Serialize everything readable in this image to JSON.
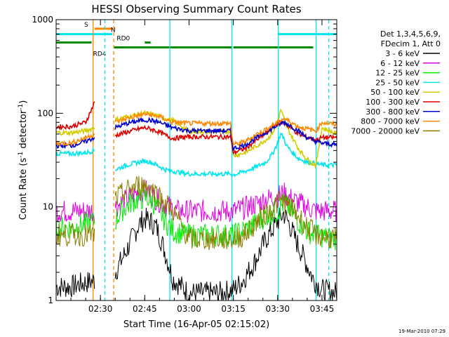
{
  "chart_data": {
    "type": "line",
    "title": "HESSI Observing Summary Count Rates",
    "xlabel": "Start Time (16-Apr-05 02:15:02)",
    "ylabel_main": "Count Rate (s",
    "ylabel_sup1": "-1",
    "ylabel_mid": " detector",
    "ylabel_sup2": "-1",
    "ylabel_end": ")",
    "y_scale": "log",
    "ylim": [
      1,
      1000
    ],
    "xlim_minutes": [
      0,
      95
    ],
    "y_ticks": [
      {
        "value": 1,
        "label": "1"
      },
      {
        "value": 10,
        "label": "10"
      },
      {
        "value": 100,
        "label": "100"
      },
      {
        "value": 1000,
        "label": "1000"
      }
    ],
    "x_ticks": [
      {
        "minute": 15,
        "label": "02:30"
      },
      {
        "minute": 30,
        "label": "02:45"
      },
      {
        "minute": 45,
        "label": "03:00"
      },
      {
        "minute": 60,
        "label": "03:15"
      },
      {
        "minute": 75,
        "label": "03:30"
      },
      {
        "minute": 90,
        "label": "03:45"
      }
    ],
    "legend_header": [
      "Det 1,3,4,5,6,9,",
      "FDecim 1, Att 0"
    ],
    "footer_date": "19-Mar-2010 07:29",
    "gap": [
      13,
      20
    ],
    "series": [
      {
        "name": "3 - 6 keV",
        "color": "#000000",
        "points": [
          [
            0,
            1.4
          ],
          [
            5,
            1.4
          ],
          [
            8,
            1.5
          ],
          [
            12,
            1.6
          ],
          [
            20,
            2.0
          ],
          [
            24,
            3.5
          ],
          [
            28,
            6.5
          ],
          [
            30,
            7.5
          ],
          [
            32,
            7.0
          ],
          [
            34,
            6.0
          ],
          [
            36,
            4.0
          ],
          [
            38,
            2.5
          ],
          [
            39.5,
            1.7
          ],
          [
            45,
            1.2
          ],
          [
            55,
            1.2
          ],
          [
            60,
            1.3
          ],
          [
            63,
            1.6
          ],
          [
            67,
            2.5
          ],
          [
            71,
            4.5
          ],
          [
            75,
            7.0
          ],
          [
            77,
            8.5
          ],
          [
            79,
            6.5
          ],
          [
            81,
            4.5
          ],
          [
            84,
            2.8
          ],
          [
            87,
            1.7
          ],
          [
            90,
            1.3
          ],
          [
            95,
            1.2
          ]
        ]
      },
      {
        "name": "6 - 12 keV",
        "color": "#e000e0",
        "points": [
          [
            0,
            9
          ],
          [
            13,
            9
          ],
          [
            20,
            10
          ],
          [
            24,
            12
          ],
          [
            28,
            14.5
          ],
          [
            30,
            15
          ],
          [
            32,
            14
          ],
          [
            34,
            12
          ],
          [
            37,
            10.5
          ],
          [
            39.5,
            9.5
          ],
          [
            40,
            9
          ],
          [
            60,
            9
          ],
          [
            63,
            9.5
          ],
          [
            67,
            10.5
          ],
          [
            71,
            12
          ],
          [
            75,
            13
          ],
          [
            77,
            14
          ],
          [
            79,
            12.5
          ],
          [
            82,
            11
          ],
          [
            85,
            10
          ],
          [
            88,
            9
          ],
          [
            95,
            9
          ]
        ]
      },
      {
        "name": "12 - 25 keV",
        "color": "#00ee00",
        "points": [
          [
            0,
            6
          ],
          [
            5,
            6
          ],
          [
            10,
            6.5
          ],
          [
            13,
            7
          ],
          [
            20,
            7
          ],
          [
            22,
            9
          ],
          [
            26,
            11.5
          ],
          [
            30,
            12.5
          ],
          [
            32,
            12
          ],
          [
            35,
            9
          ],
          [
            37,
            7
          ],
          [
            39.5,
            5.5
          ],
          [
            45,
            5
          ],
          [
            59,
            5
          ],
          [
            60,
            5
          ],
          [
            63,
            5.5
          ],
          [
            67,
            6.5
          ],
          [
            71,
            8
          ],
          [
            75,
            9
          ],
          [
            77,
            11
          ],
          [
            79,
            9.5
          ],
          [
            82,
            7
          ],
          [
            85,
            5.5
          ],
          [
            88,
            5
          ],
          [
            95,
            4.5
          ]
        ]
      },
      {
        "name": "25 - 50 keV",
        "color": "#00e6ee",
        "points": [
          [
            0,
            37
          ],
          [
            5,
            37
          ],
          [
            10,
            38
          ],
          [
            13,
            40
          ],
          [
            20,
            25
          ],
          [
            24,
            28
          ],
          [
            28,
            30
          ],
          [
            30,
            31
          ],
          [
            32,
            30
          ],
          [
            35,
            27
          ],
          [
            37,
            25
          ],
          [
            39.5,
            24
          ],
          [
            45,
            22.5
          ],
          [
            59,
            22.5
          ],
          [
            60,
            22
          ],
          [
            64,
            24
          ],
          [
            68,
            27
          ],
          [
            71,
            30
          ],
          [
            73,
            36
          ],
          [
            75,
            48
          ],
          [
            76,
            60
          ],
          [
            77,
            55
          ],
          [
            78,
            45
          ],
          [
            80,
            38
          ],
          [
            82,
            33
          ],
          [
            85,
            30
          ],
          [
            88,
            29
          ],
          [
            90,
            28
          ],
          [
            95,
            28
          ]
        ]
      },
      {
        "name": "50 - 100 keV",
        "color": "#d4cc00",
        "points": [
          [
            0,
            62
          ],
          [
            5,
            62
          ],
          [
            10,
            65
          ],
          [
            13,
            70
          ],
          [
            20,
            85
          ],
          [
            24,
            92
          ],
          [
            28,
            98
          ],
          [
            30,
            100
          ],
          [
            32,
            98
          ],
          [
            35,
            93
          ],
          [
            37,
            88
          ],
          [
            39.5,
            84
          ],
          [
            45,
            64
          ],
          [
            59,
            64
          ],
          [
            60,
            35
          ],
          [
            64,
            38
          ],
          [
            68,
            45
          ],
          [
            72,
            55
          ],
          [
            75,
            75
          ],
          [
            76,
            110
          ],
          [
            77,
            90
          ],
          [
            78,
            72
          ],
          [
            80,
            55
          ],
          [
            82,
            42
          ],
          [
            84,
            35
          ],
          [
            86,
            30
          ],
          [
            88,
            28
          ],
          [
            90,
            70
          ],
          [
            95,
            60
          ]
        ]
      },
      {
        "name": "100 - 300 keV",
        "color": "#e00000",
        "points": [
          [
            0,
            72
          ],
          [
            5,
            72
          ],
          [
            10,
            80
          ],
          [
            13,
            130
          ],
          [
            20,
            58
          ],
          [
            24,
            63
          ],
          [
            28,
            68
          ],
          [
            30,
            70
          ],
          [
            32,
            68
          ],
          [
            35,
            63
          ],
          [
            37,
            58
          ],
          [
            39.5,
            54
          ],
          [
            45,
            56
          ],
          [
            59,
            56
          ],
          [
            60,
            38
          ],
          [
            64,
            42
          ],
          [
            68,
            52
          ],
          [
            72,
            65
          ],
          [
            75,
            78
          ],
          [
            77,
            80
          ],
          [
            79,
            72
          ],
          [
            82,
            60
          ],
          [
            85,
            55
          ],
          [
            88,
            52
          ],
          [
            90,
            55
          ],
          [
            95,
            55
          ]
        ]
      },
      {
        "name": "300 - 800 keV",
        "color": "#0000cc",
        "points": [
          [
            0,
            45
          ],
          [
            5,
            45
          ],
          [
            10,
            50
          ],
          [
            13,
            55
          ],
          [
            20,
            70
          ],
          [
            24,
            78
          ],
          [
            28,
            83
          ],
          [
            30,
            85
          ],
          [
            32,
            84
          ],
          [
            35,
            80
          ],
          [
            37,
            75
          ],
          [
            39.5,
            70
          ],
          [
            45,
            65
          ],
          [
            59,
            65
          ],
          [
            60,
            42
          ],
          [
            64,
            46
          ],
          [
            68,
            55
          ],
          [
            72,
            65
          ],
          [
            75,
            75
          ],
          [
            77,
            80
          ],
          [
            79,
            75
          ],
          [
            82,
            65
          ],
          [
            85,
            55
          ],
          [
            88,
            50
          ],
          [
            90,
            48
          ],
          [
            95,
            46
          ]
        ]
      },
      {
        "name": "800 - 7000 keV",
        "color": "#ff8800",
        "points": [
          [
            0,
            48
          ],
          [
            5,
            48
          ],
          [
            10,
            55
          ],
          [
            13,
            60
          ],
          [
            20,
            80
          ],
          [
            24,
            88
          ],
          [
            28,
            95
          ],
          [
            30,
            98
          ],
          [
            32,
            96
          ],
          [
            35,
            92
          ],
          [
            37,
            86
          ],
          [
            39.5,
            80
          ],
          [
            45,
            78
          ],
          [
            59,
            78
          ],
          [
            60,
            46
          ],
          [
            64,
            50
          ],
          [
            68,
            60
          ],
          [
            72,
            70
          ],
          [
            75,
            80
          ],
          [
            77,
            88
          ],
          [
            79,
            82
          ],
          [
            82,
            72
          ],
          [
            85,
            68
          ],
          [
            88,
            65
          ],
          [
            90,
            80
          ],
          [
            95,
            75
          ]
        ]
      },
      {
        "name": "7000 - 20000 keV",
        "color": "#8b7d00",
        "points": [
          [
            0,
            5
          ],
          [
            13,
            5
          ],
          [
            20,
            12
          ],
          [
            24,
            15
          ],
          [
            28,
            17
          ],
          [
            30,
            17
          ],
          [
            32,
            16
          ],
          [
            35,
            13
          ],
          [
            37,
            11
          ],
          [
            39.5,
            9
          ],
          [
            45,
            4.5
          ],
          [
            59,
            4.5
          ],
          [
            60,
            4.5
          ],
          [
            64,
            5
          ],
          [
            68,
            7
          ],
          [
            72,
            9
          ],
          [
            75,
            11
          ],
          [
            77,
            11.5
          ],
          [
            79,
            10
          ],
          [
            82,
            8
          ],
          [
            85,
            6
          ],
          [
            88,
            5
          ],
          [
            95,
            4.5
          ]
        ]
      }
    ],
    "flag_bars": [
      {
        "label": "S",
        "color": "#ff8800",
        "y": 800,
        "segments": [
          [
            13,
            19
          ]
        ],
        "label_at": 9.5
      },
      {
        "label": "N",
        "color": "#00e6ee",
        "y": 700,
        "segments": [
          [
            0,
            19
          ],
          [
            75,
            95
          ]
        ],
        "label_at": 18.5
      },
      {
        "label": "RD0",
        "color": "#008800",
        "y": 570,
        "segments": [
          [
            0,
            12
          ],
          [
            30,
            32
          ]
        ],
        "label_at": 20.5
      },
      {
        "label": "RD4",
        "color": "#008800",
        "y": 505,
        "segments": [
          [
            19.5,
            38.5
          ],
          [
            38.5,
            59.5
          ],
          [
            60,
            87
          ]
        ],
        "label_at": 12.5
      }
    ],
    "vlines": [
      {
        "minute": 12.5,
        "color": "#ff8800",
        "style": "solid"
      },
      {
        "minute": 16.5,
        "color": "#00e6ee",
        "style": "dashed"
      },
      {
        "minute": 19.5,
        "color": "#ff8800",
        "style": "dashed"
      },
      {
        "minute": 38.5,
        "color": "#00e6ee",
        "style": "solid"
      },
      {
        "minute": 59.5,
        "color": "#00e6ee",
        "style": "solid"
      },
      {
        "minute": 75.2,
        "color": "#00e6ee",
        "style": "solid"
      },
      {
        "minute": 88,
        "color": "#00e6ee",
        "style": "solid"
      },
      {
        "minute": 92.3,
        "color": "#00e6ee",
        "style": "dashed"
      }
    ]
  }
}
